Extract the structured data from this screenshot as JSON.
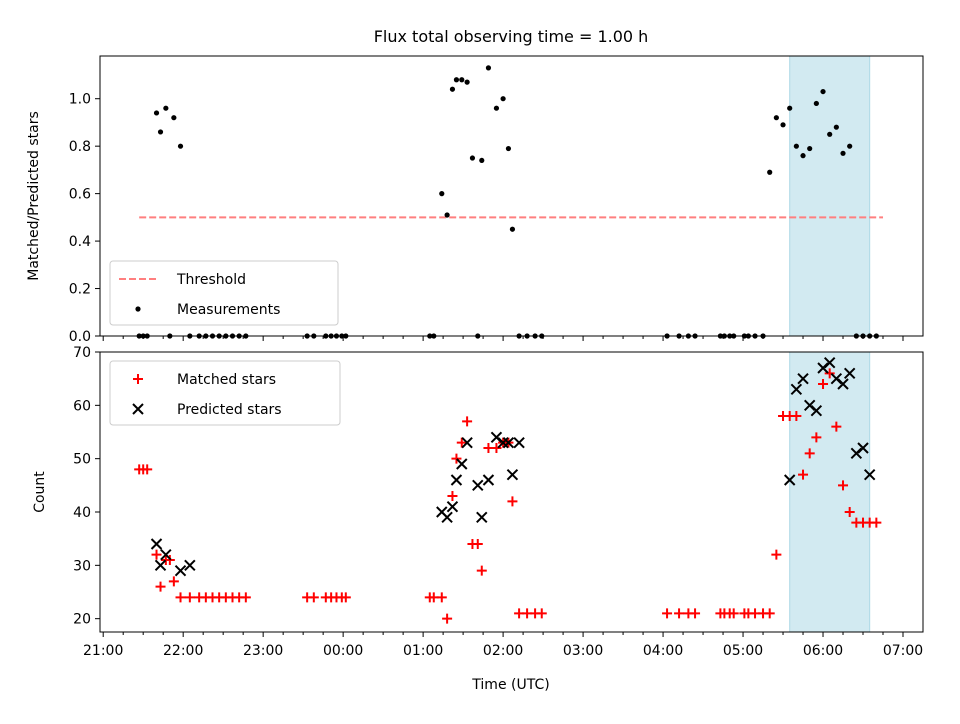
{
  "figure": {
    "title": "Flux total observing time = 1.00 h"
  },
  "chart_data": [
    {
      "type": "scatter",
      "panel": "top",
      "title": "Flux total observing time = 1.00 h",
      "xlabel": "",
      "ylabel": "Matched/Predicted stars",
      "xlim": [
        "21:00",
        "07:15"
      ],
      "ylim": [
        0,
        1.18
      ],
      "yticks": [
        "0.0",
        "0.2",
        "0.4",
        "0.6",
        "0.8",
        "1.0"
      ],
      "ytick_values": [
        0,
        0.2,
        0.4,
        0.6,
        0.8,
        1.0
      ],
      "highlight_span": [
        "05:35",
        "06:35"
      ],
      "highlight_color": "#add8e6",
      "legend": {
        "placement": "lower-left",
        "entries": [
          "Threshold",
          "Measurements"
        ]
      },
      "series": [
        {
          "name": "Threshold",
          "style": "dashed-line",
          "color": "#ff7f7f",
          "x": [
            "21:27",
            "06:45"
          ],
          "y": [
            0.5,
            0.5
          ]
        },
        {
          "name": "Measurements",
          "style": "dot",
          "color": "#000000",
          "x": [
            "21:27",
            "21:30",
            "21:33",
            "21:40",
            "21:43",
            "21:47",
            "21:50",
            "21:53",
            "21:58",
            "22:05",
            "22:12",
            "22:17",
            "22:22",
            "22:27",
            "22:32",
            "22:37",
            "22:42",
            "22:47",
            "23:33",
            "23:38",
            "23:47",
            "23:51",
            "23:55",
            "23:59",
            "00:02",
            "01:05",
            "01:08",
            "01:14",
            "01:18",
            "01:22",
            "01:25",
            "01:29",
            "01:33",
            "01:37",
            "01:41",
            "01:44",
            "01:49",
            "01:55",
            "02:00",
            "02:04",
            "02:07",
            "02:12",
            "02:18",
            "02:24",
            "02:29",
            "04:03",
            "04:12",
            "04:19",
            "04:24",
            "04:43",
            "04:46",
            "04:50",
            "04:53",
            "05:01",
            "05:04",
            "05:09",
            "05:15",
            "05:20",
            "05:25",
            "05:30",
            "05:35",
            "05:40",
            "05:45",
            "05:50",
            "05:55",
            "06:00",
            "06:05",
            "06:10",
            "06:15",
            "06:20",
            "06:25",
            "06:30",
            "06:35",
            "06:40"
          ],
          "y": [
            0,
            0,
            0,
            0.94,
            0.86,
            0.96,
            0,
            0.92,
            0.8,
            0,
            0,
            0,
            0,
            0,
            0,
            0,
            0,
            0,
            0,
            0,
            0,
            0,
            0,
            0,
            0,
            0,
            0,
            0.6,
            0.51,
            1.04,
            1.08,
            1.08,
            1.07,
            0.75,
            0,
            0.74,
            1.13,
            0.96,
            1.0,
            0.79,
            0.45,
            0,
            0,
            0,
            0,
            0,
            0,
            0,
            0,
            0,
            0,
            0,
            0,
            0,
            0,
            0,
            0,
            0.69,
            0.92,
            0.89,
            0.96,
            0.8,
            0.76,
            0.79,
            0.98,
            1.03,
            0.85,
            0.88,
            0.77,
            0.8,
            0,
            0,
            0,
            0
          ]
        }
      ]
    },
    {
      "type": "scatter",
      "panel": "bottom",
      "title": "",
      "xlabel": "Time (UTC)",
      "ylabel": "Count",
      "xlim": [
        "21:00",
        "07:15"
      ],
      "ylim": [
        17.5,
        70
      ],
      "yticks": [
        "20",
        "30",
        "40",
        "50",
        "60",
        "70"
      ],
      "ytick_values": [
        20,
        30,
        40,
        50,
        60,
        70
      ],
      "xticks": [
        "21:00",
        "22:00",
        "23:00",
        "00:00",
        "01:00",
        "02:00",
        "03:00",
        "04:00",
        "05:00",
        "06:00",
        "07:00"
      ],
      "highlight_span": [
        "05:35",
        "06:35"
      ],
      "highlight_color": "#add8e6",
      "legend": {
        "placement": "upper-left",
        "entries": [
          "Matched stars",
          "Predicted stars"
        ]
      },
      "series": [
        {
          "name": "Matched stars",
          "marker": "plus",
          "color": "#ff0000",
          "x": [
            "21:27",
            "21:30",
            "21:33",
            "21:40",
            "21:43",
            "21:47",
            "21:50",
            "21:53",
            "21:58",
            "22:05",
            "22:12",
            "22:17",
            "22:22",
            "22:27",
            "22:32",
            "22:37",
            "22:42",
            "22:47",
            "23:33",
            "23:38",
            "23:47",
            "23:51",
            "23:55",
            "23:59",
            "00:02",
            "01:05",
            "01:08",
            "01:14",
            "01:18",
            "01:22",
            "01:25",
            "01:29",
            "01:33",
            "01:37",
            "01:41",
            "01:44",
            "01:49",
            "01:55",
            "02:00",
            "02:04",
            "02:07",
            "02:12",
            "02:18",
            "02:24",
            "02:29",
            "04:03",
            "04:12",
            "04:19",
            "04:24",
            "04:43",
            "04:46",
            "04:50",
            "04:53",
            "05:01",
            "05:04",
            "05:09",
            "05:15",
            "05:20",
            "05:25",
            "05:30",
            "05:35",
            "05:40",
            "05:45",
            "05:50",
            "05:55",
            "06:00",
            "06:05",
            "06:10",
            "06:15",
            "06:20",
            "06:25",
            "06:30",
            "06:35",
            "06:40"
          ],
          "y": [
            48,
            48,
            48,
            32,
            26,
            31,
            31,
            27,
            24,
            24,
            24,
            24,
            24,
            24,
            24,
            24,
            24,
            24,
            24,
            24,
            24,
            24,
            24,
            24,
            24,
            24,
            24,
            24,
            20,
            43,
            50,
            53,
            57,
            34,
            34,
            29,
            52,
            52,
            53,
            53,
            42,
            21,
            21,
            21,
            21,
            21,
            21,
            21,
            21,
            21,
            21,
            21,
            21,
            21,
            21,
            21,
            21,
            21,
            32,
            58,
            58,
            58,
            47,
            51,
            54,
            64,
            66,
            56,
            45,
            40,
            38,
            38,
            38,
            38
          ]
        },
        {
          "name": "Predicted stars",
          "marker": "x",
          "color": "#000000",
          "x": [
            "21:40",
            "21:43",
            "21:47",
            "21:58",
            "22:05",
            "01:14",
            "01:18",
            "01:22",
            "01:25",
            "01:29",
            "01:33",
            "01:41",
            "01:44",
            "01:49",
            "01:55",
            "02:00",
            "02:04",
            "02:07",
            "02:12",
            "05:35",
            "05:40",
            "05:45",
            "05:50",
            "05:55",
            "06:00",
            "06:05",
            "06:10",
            "06:15",
            "06:20",
            "06:25",
            "06:30",
            "06:35"
          ],
          "y": [
            34,
            30,
            32,
            29,
            30,
            40,
            39,
            41,
            46,
            49,
            53,
            45,
            39,
            46,
            54,
            53,
            53,
            47,
            53,
            46,
            63,
            65,
            60,
            59,
            67,
            68,
            65,
            64,
            66,
            51,
            52,
            47
          ]
        }
      ]
    }
  ]
}
